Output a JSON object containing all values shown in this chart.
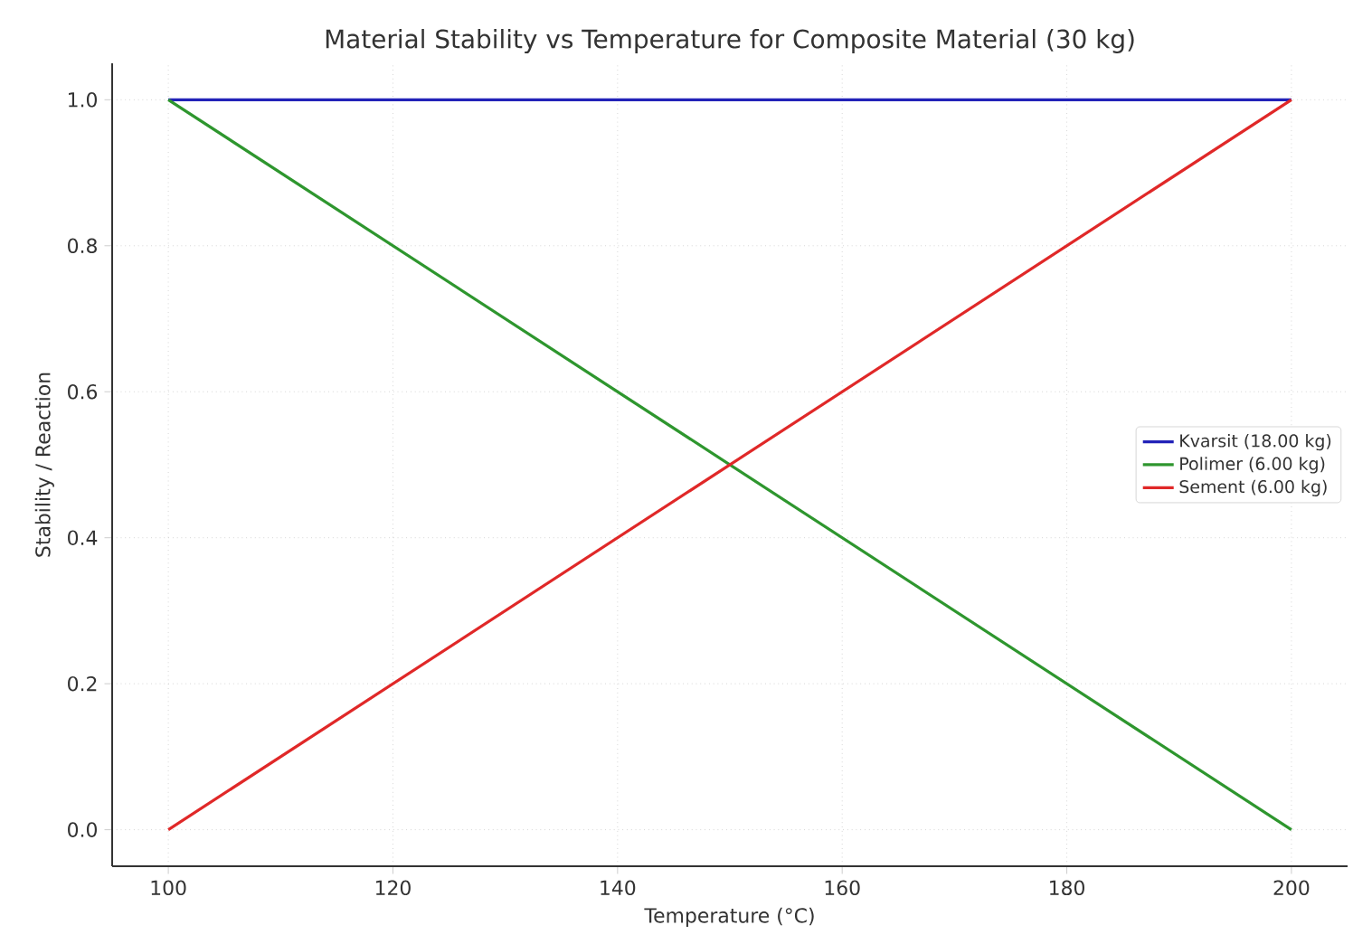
{
  "chart_data": {
    "type": "line",
    "title": "Material Stability vs Temperature for Composite Material (30 kg)",
    "xlabel": "Temperature (°C)",
    "ylabel": "Stability / Reaction",
    "x": [
      100,
      200
    ],
    "series": [
      {
        "name": "Kvarsit (18.00 kg)",
        "color": "#2222b8",
        "values": [
          1.0,
          1.0
        ]
      },
      {
        "name": "Polimer (6.00 kg)",
        "color": "#2e962e",
        "values": [
          1.0,
          0.0
        ]
      },
      {
        "name": "Sement (6.00 kg)",
        "color": "#e02828",
        "values": [
          0.0,
          1.0
        ]
      }
    ],
    "xlim": [
      95,
      205
    ],
    "ylim": [
      -0.05,
      1.05
    ],
    "xticks": [
      100,
      120,
      140,
      160,
      180,
      200
    ],
    "yticks": [
      {
        "value": 0,
        "label": "0.0"
      },
      0.2,
      0.4,
      0.6,
      0.8,
      {
        "value": 1,
        "label": "1.0"
      }
    ],
    "grid": true,
    "legend": "right",
    "marker": "none",
    "line_style": "solid"
  }
}
